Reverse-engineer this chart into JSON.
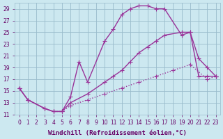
{
  "title": "",
  "xlabel": "Windchill (Refroidissement éolien,°C)",
  "ylabel": "",
  "bg_color": "#cce8f0",
  "line_color": "#993399",
  "grid_color": "#99bbcc",
  "xlim": [
    -0.5,
    23.5
  ],
  "ylim": [
    11,
    30
  ],
  "xticks": [
    0,
    1,
    2,
    3,
    4,
    5,
    6,
    7,
    8,
    9,
    10,
    11,
    12,
    13,
    14,
    15,
    16,
    17,
    18,
    19,
    20,
    21,
    22,
    23
  ],
  "yticks": [
    11,
    13,
    15,
    17,
    19,
    21,
    23,
    25,
    27,
    29
  ],
  "curve1_x": [
    0,
    1,
    3,
    4,
    5,
    6,
    7,
    8,
    10,
    11,
    12,
    13,
    14,
    15,
    16,
    17,
    19,
    20,
    21,
    22,
    23
  ],
  "curve1_y": [
    15.5,
    13.5,
    12.0,
    11.5,
    11.5,
    14.0,
    20.0,
    16.5,
    23.5,
    25.5,
    28.0,
    29.0,
    29.5,
    29.5,
    29.0,
    29.0,
    24.5,
    25.0,
    20.5,
    19.0,
    17.5
  ],
  "curve2_x": [
    0,
    1,
    3,
    4,
    5,
    6,
    8,
    10,
    11,
    12,
    13,
    14,
    15,
    16,
    17,
    19,
    20,
    21,
    22,
    23
  ],
  "curve2_y": [
    15.5,
    13.5,
    12.0,
    11.5,
    11.5,
    13.0,
    14.5,
    16.5,
    17.5,
    18.5,
    20.0,
    21.5,
    22.5,
    23.5,
    24.5,
    25.0,
    25.0,
    17.5,
    17.5,
    17.5
  ],
  "curve3_x": [
    0,
    1,
    3,
    4,
    5,
    6,
    8,
    10,
    12,
    14,
    16,
    18,
    20,
    22,
    23
  ],
  "curve3_y": [
    15.5,
    13.5,
    12.0,
    11.5,
    11.5,
    12.5,
    13.5,
    14.5,
    15.5,
    16.5,
    17.5,
    18.5,
    19.5,
    17.0,
    17.5
  ],
  "marker": "+",
  "markersize": 4,
  "linewidth": 1.0,
  "xlabel_fontsize": 6.5,
  "tick_fontsize": 5.5,
  "tick_color": "#660066",
  "xlabel_color": "#660066"
}
